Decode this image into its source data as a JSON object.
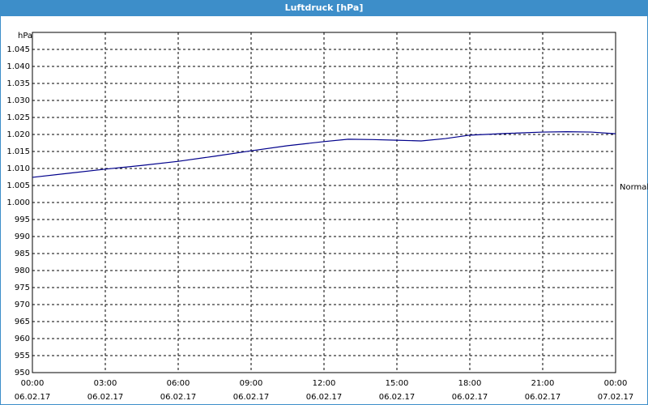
{
  "chart_data": {
    "type": "line",
    "title": "Luftdruck [hPa]",
    "y_label": "hPa",
    "annotation": "Normal",
    "x": [
      0,
      1.5,
      3,
      4.5,
      6,
      7.5,
      9,
      10.5,
      12,
      13,
      14,
      15,
      16,
      17,
      18,
      19.5,
      21,
      22,
      23,
      24
    ],
    "series": [
      {
        "color": "#00008b",
        "values": [
          1007.4,
          1008.6,
          1009.8,
          1010.9,
          1012.1,
          1013.6,
          1015.2,
          1016.7,
          1017.9,
          1018.6,
          1018.5,
          1018.3,
          1018.1,
          1018.8,
          1019.8,
          1020.3,
          1020.7,
          1020.8,
          1020.7,
          1020.2
        ]
      }
    ],
    "xlim": [
      0,
      24
    ],
    "xticks": [
      {
        "value": 0,
        "label": "00:00"
      },
      {
        "value": 3,
        "label": "03:00"
      },
      {
        "value": 6,
        "label": "06:00"
      },
      {
        "value": 9,
        "label": "09:00"
      },
      {
        "value": 12,
        "label": "12:00"
      },
      {
        "value": 15,
        "label": "15:00"
      },
      {
        "value": 18,
        "label": "18:00"
      },
      {
        "value": 21,
        "label": "21:00"
      },
      {
        "value": 24,
        "label": "00:00"
      }
    ],
    "xtick_dates": [
      "06.02.17",
      "06.02.17",
      "06.02.17",
      "06.02.17",
      "06.02.17",
      "06.02.17",
      "06.02.17",
      "06.02.17",
      "07.02.17"
    ],
    "ylim": [
      950,
      1050
    ],
    "yticks": [
      950,
      955,
      960,
      965,
      970,
      975,
      980,
      985,
      990,
      995,
      {
        "value": 1000,
        "label": "1.000"
      },
      {
        "value": 1005,
        "label": "1.005"
      },
      {
        "value": 1010,
        "label": "1.010"
      },
      {
        "value": 1015,
        "label": "1.015"
      },
      {
        "value": 1020,
        "label": "1.020"
      },
      {
        "value": 1025,
        "label": "1.025"
      },
      {
        "value": 1030,
        "label": "1.030"
      },
      {
        "value": 1035,
        "label": "1.035"
      },
      {
        "value": 1040,
        "label": "1.040"
      },
      {
        "value": 1045,
        "label": "1.045"
      }
    ],
    "grid": true
  }
}
